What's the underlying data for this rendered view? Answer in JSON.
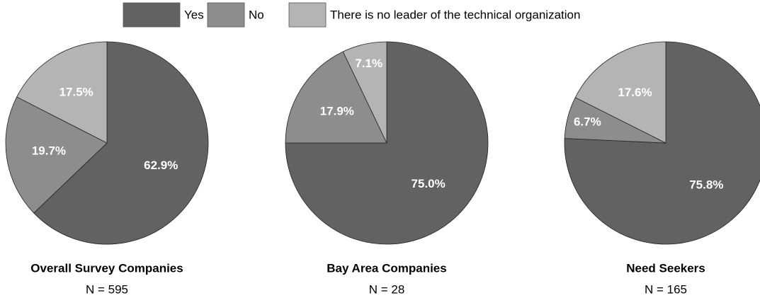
{
  "legend": {
    "labels": [
      "Yes",
      "No",
      "There is no leader of the technical organization"
    ],
    "colors": [
      "#626262",
      "#8d8d8d",
      "#b4b4b4"
    ]
  },
  "chart_data": [
    {
      "type": "pie",
      "title": "Overall Survey Companies",
      "subtitle": "N = 595",
      "values": [
        62.9,
        19.7,
        17.5
      ],
      "value_labels": [
        "62.9%",
        "19.7%",
        "17.5%"
      ]
    },
    {
      "type": "pie",
      "title": "Bay Area Companies",
      "subtitle": "N = 28",
      "values": [
        75.0,
        17.9,
        7.1
      ],
      "value_labels": [
        "75.0%",
        "17.9%",
        "7.1%"
      ]
    },
    {
      "type": "pie",
      "title": "Need Seekers",
      "subtitle": "N = 165",
      "values": [
        75.8,
        6.7,
        17.6
      ],
      "value_labels": [
        "75.8%",
        "6.7%",
        "17.6%"
      ]
    }
  ]
}
